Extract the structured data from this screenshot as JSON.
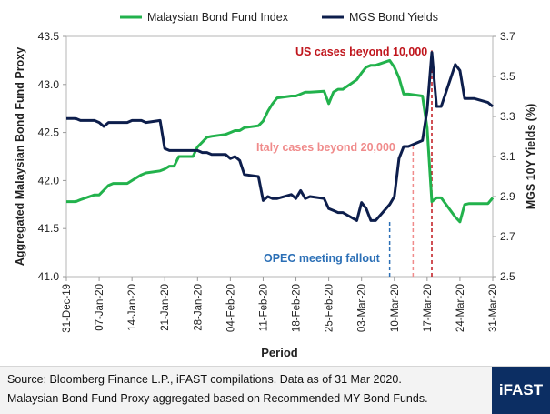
{
  "chart_data": {
    "type": "line",
    "title": "",
    "xlabel": "Period",
    "ylabel_left": "Aggregated Malaysian Bond Fund Proxy",
    "ylabel_right": "MGS 10Y Yields (%)",
    "ylim_left": [
      41.0,
      43.5
    ],
    "ylim_right": [
      2.5,
      3.7
    ],
    "yticks_left": [
      "41.0",
      "41.5",
      "42.0",
      "42.5",
      "43.0",
      "43.5"
    ],
    "yticks_right": [
      "2.5",
      "2.7",
      "2.9",
      "3.1",
      "3.3",
      "3.5",
      "3.7"
    ],
    "x_start": "2019-12-31",
    "x_end": "2020-03-31",
    "xticks": [
      "31-Dec-19",
      "07-Jan-20",
      "14-Jan-20",
      "21-Jan-20",
      "28-Jan-20",
      "04-Feb-20",
      "11-Feb-20",
      "18-Feb-20",
      "25-Feb-20",
      "03-Mar-20",
      "10-Mar-20",
      "17-Mar-20",
      "24-Mar-20",
      "31-Mar-20"
    ],
    "grid": false,
    "legend_position": "top",
    "series": [
      {
        "name": "Malaysian Bond Fund Index",
        "axis": "left",
        "color": "#22b24c",
        "x": [
          "2019-12-31",
          "2020-01-02",
          "2020-01-03",
          "2020-01-06",
          "2020-01-07",
          "2020-01-08",
          "2020-01-09",
          "2020-01-10",
          "2020-01-13",
          "2020-01-14",
          "2020-01-15",
          "2020-01-16",
          "2020-01-17",
          "2020-01-20",
          "2020-01-21",
          "2020-01-22",
          "2020-01-23",
          "2020-01-24",
          "2020-01-27",
          "2020-01-28",
          "2020-01-29",
          "2020-01-30",
          "2020-01-31",
          "2020-02-03",
          "2020-02-04",
          "2020-02-05",
          "2020-02-06",
          "2020-02-07",
          "2020-02-10",
          "2020-02-11",
          "2020-02-12",
          "2020-02-13",
          "2020-02-14",
          "2020-02-17",
          "2020-02-18",
          "2020-02-19",
          "2020-02-20",
          "2020-02-21",
          "2020-02-24",
          "2020-02-25",
          "2020-02-26",
          "2020-02-27",
          "2020-02-28",
          "2020-03-02",
          "2020-03-03",
          "2020-03-04",
          "2020-03-05",
          "2020-03-06",
          "2020-03-09",
          "2020-03-10",
          "2020-03-11",
          "2020-03-12",
          "2020-03-13",
          "2020-03-16",
          "2020-03-17",
          "2020-03-18",
          "2020-03-19",
          "2020-03-20",
          "2020-03-23",
          "2020-03-24",
          "2020-03-25",
          "2020-03-26",
          "2020-03-27",
          "2020-03-30",
          "2020-03-31"
        ],
        "values": [
          41.78,
          41.78,
          41.8,
          41.85,
          41.85,
          41.9,
          41.95,
          41.97,
          41.97,
          42.0,
          42.03,
          42.06,
          42.08,
          42.1,
          42.12,
          42.15,
          42.15,
          42.25,
          42.25,
          42.35,
          42.4,
          42.45,
          42.46,
          42.48,
          42.5,
          42.52,
          42.52,
          42.55,
          42.57,
          42.62,
          42.72,
          42.8,
          42.86,
          42.88,
          42.88,
          42.9,
          42.92,
          42.92,
          42.93,
          42.8,
          42.92,
          42.95,
          42.95,
          43.05,
          43.12,
          43.18,
          43.2,
          43.2,
          43.25,
          43.18,
          43.07,
          42.9,
          42.9,
          42.88,
          42.55,
          41.78,
          41.82,
          41.82,
          41.62,
          41.57,
          41.75,
          41.76,
          41.76,
          41.76,
          41.82
        ]
      },
      {
        "name": "MGS Bond Yields",
        "axis": "right",
        "color": "#0d1e4c",
        "x": [
          "2019-12-31",
          "2020-01-02",
          "2020-01-03",
          "2020-01-06",
          "2020-01-07",
          "2020-01-08",
          "2020-01-09",
          "2020-01-10",
          "2020-01-13",
          "2020-01-14",
          "2020-01-15",
          "2020-01-16",
          "2020-01-17",
          "2020-01-20",
          "2020-01-21",
          "2020-01-22",
          "2020-01-23",
          "2020-01-24",
          "2020-01-27",
          "2020-01-28",
          "2020-01-29",
          "2020-01-30",
          "2020-01-31",
          "2020-02-03",
          "2020-02-04",
          "2020-02-05",
          "2020-02-06",
          "2020-02-07",
          "2020-02-10",
          "2020-02-11",
          "2020-02-12",
          "2020-02-13",
          "2020-02-14",
          "2020-02-17",
          "2020-02-18",
          "2020-02-19",
          "2020-02-20",
          "2020-02-21",
          "2020-02-24",
          "2020-02-25",
          "2020-02-26",
          "2020-02-27",
          "2020-02-28",
          "2020-03-02",
          "2020-03-03",
          "2020-03-04",
          "2020-03-05",
          "2020-03-06",
          "2020-03-09",
          "2020-03-10",
          "2020-03-11",
          "2020-03-12",
          "2020-03-13",
          "2020-03-16",
          "2020-03-17",
          "2020-03-18",
          "2020-03-19",
          "2020-03-20",
          "2020-03-23",
          "2020-03-24",
          "2020-03-25",
          "2020-03-26",
          "2020-03-27",
          "2020-03-30",
          "2020-03-31"
        ],
        "values": [
          3.29,
          3.29,
          3.28,
          3.28,
          3.27,
          3.25,
          3.27,
          3.27,
          3.27,
          3.28,
          3.28,
          3.28,
          3.27,
          3.28,
          3.14,
          3.13,
          3.13,
          3.13,
          3.13,
          3.13,
          3.12,
          3.12,
          3.11,
          3.11,
          3.09,
          3.1,
          3.08,
          3.01,
          3.0,
          2.88,
          2.9,
          2.89,
          2.89,
          2.91,
          2.89,
          2.93,
          2.89,
          2.9,
          2.89,
          2.84,
          2.83,
          2.82,
          2.82,
          2.78,
          2.87,
          2.84,
          2.78,
          2.78,
          2.86,
          2.9,
          3.09,
          3.15,
          3.15,
          3.18,
          3.33,
          3.62,
          3.35,
          3.35,
          3.56,
          3.53,
          3.39,
          3.39,
          3.39,
          3.37,
          3.35
        ]
      }
    ],
    "annotations": [
      {
        "text": "US cases beyond 10,000",
        "date": "2020-03-18",
        "color": "#c0161d",
        "line_top": 3.63
      },
      {
        "text": "Italy cases beyond 20,000",
        "date": "2020-03-14",
        "color": "#f08b8b",
        "line_top": 3.15
      },
      {
        "text": "OPEC meeting fallout",
        "date": "2020-03-09",
        "color": "#2b6fb6",
        "line_top": 2.78
      }
    ]
  },
  "footer": {
    "source_line1": "Source: Bloomberg Finance L.P., iFAST compilations. Data as of 31 Mar 2020.",
    "source_line2": "Malaysian Bond Fund Proxy aggregated based on Recommended MY Bond Funds.",
    "brand": "iFAST"
  }
}
